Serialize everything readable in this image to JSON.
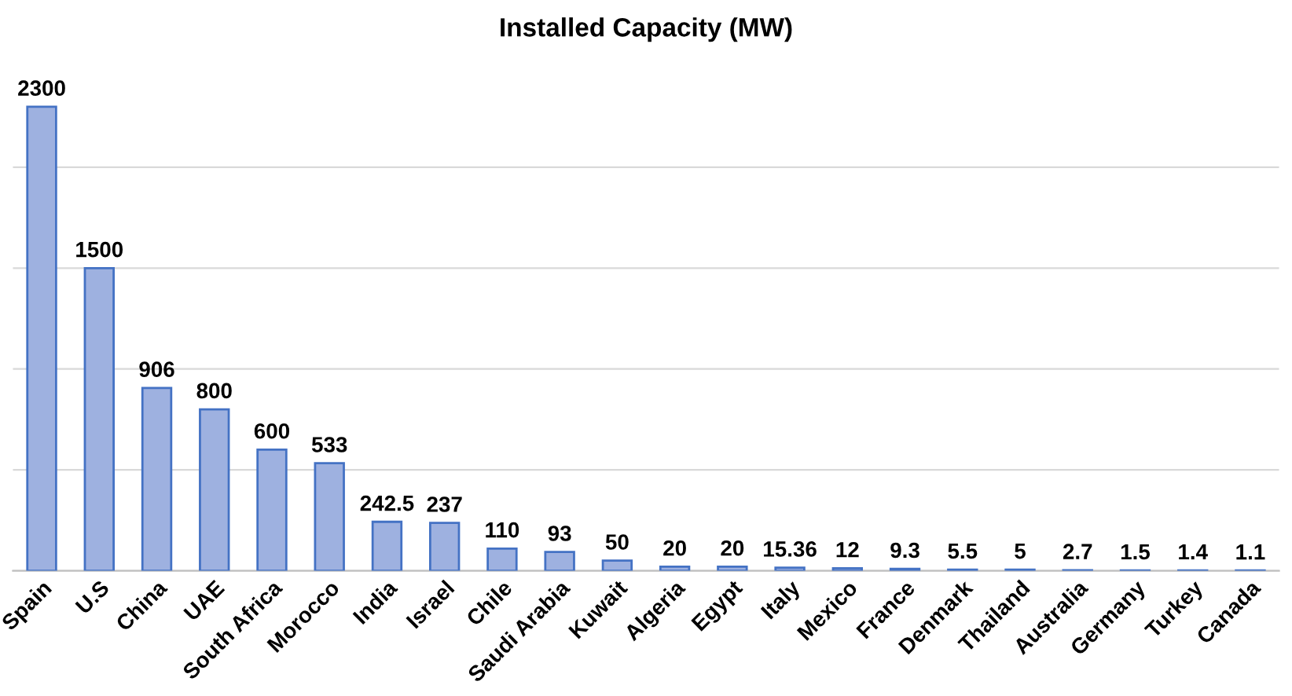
{
  "chart_data": {
    "type": "bar",
    "title": "Installed Capacity (MW)",
    "categories": [
      "Spain",
      "U.S",
      "China",
      "UAE",
      "South Africa",
      "Morocco",
      "India",
      "Israel",
      "Chile",
      "Saudi Arabia",
      "Kuwait",
      "Algeria",
      "Egypt",
      "Italy",
      "Mexico",
      "France",
      "Denmark",
      "Thailand",
      "Australia",
      "Germany",
      "Turkey",
      "Canada"
    ],
    "values": [
      2300,
      1500,
      906,
      800,
      600,
      533,
      242.5,
      237,
      110,
      93,
      50,
      20,
      20,
      15.36,
      12,
      9.3,
      5.5,
      5,
      2.7,
      1.5,
      1.4,
      1.1
    ],
    "color": "#9eb1e0",
    "yticks": [
      {
        "value": 0,
        "label": null
      },
      {
        "value": 500,
        "label": null
      },
      {
        "value": 1000,
        "label": null
      },
      {
        "value": 1500,
        "label": null
      },
      {
        "value": 2000,
        "label": null
      }
    ],
    "grid": "y",
    "tick_labels": "x",
    "data_labels": true
  }
}
